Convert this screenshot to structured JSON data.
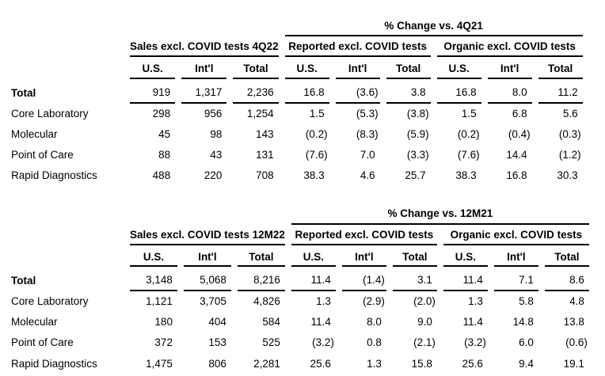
{
  "tables": [
    {
      "change_header": "% Change vs. 4Q21",
      "groups": [
        "Sales excl. COVID tests 4Q22",
        "Reported excl. COVID tests",
        "Organic excl. COVID tests"
      ],
      "subcolumns": [
        "U.S.",
        "Int'l",
        "Total",
        "U.S.",
        "Int'l",
        "Total",
        "U.S.",
        "Int'l",
        "Total"
      ],
      "rows": [
        {
          "label": "Total",
          "emphasis": true,
          "values": [
            "919",
            "1,317",
            "2,236",
            "16.8",
            "(3.6)",
            "3.8",
            "16.8",
            "8.0",
            "11.2"
          ]
        },
        {
          "label": "Core Laboratory",
          "emphasis": false,
          "values": [
            "298",
            "956",
            "1,254",
            "1.5",
            "(5.3)",
            "(3.8)",
            "1.5",
            "6.8",
            "5.6"
          ]
        },
        {
          "label": "Molecular",
          "emphasis": false,
          "values": [
            "45",
            "98",
            "143",
            "(0.2)",
            "(8.3)",
            "(5.9)",
            "(0.2)",
            "(0.4)",
            "(0.3)"
          ]
        },
        {
          "label": "Point of Care",
          "emphasis": false,
          "values": [
            "88",
            "43",
            "131",
            "(7.6)",
            "7.0",
            "(3.3)",
            "(7.6)",
            "14.4",
            "(1.2)"
          ]
        },
        {
          "label": "Rapid Diagnostics",
          "emphasis": false,
          "values": [
            "488",
            "220",
            "708",
            "38.3",
            "4.6",
            "25.7",
            "38.3",
            "16.8",
            "30.3"
          ]
        }
      ]
    },
    {
      "change_header": "% Change vs. 12M21",
      "groups": [
        "Sales excl. COVID tests 12M22",
        "Reported excl. COVID tests",
        "Organic excl. COVID tests"
      ],
      "subcolumns": [
        "U.S.",
        "Int'l",
        "Total",
        "U.S.",
        "Int'l",
        "Total",
        "U.S.",
        "Int'l",
        "Total"
      ],
      "rows": [
        {
          "label": "Total",
          "emphasis": true,
          "values": [
            "3,148",
            "5,068",
            "8,216",
            "11.4",
            "(1.4)",
            "3.1",
            "11.4",
            "7.1",
            "8.6"
          ]
        },
        {
          "label": "Core Laboratory",
          "emphasis": false,
          "values": [
            "1,121",
            "3,705",
            "4,826",
            "1.3",
            "(2.9)",
            "(2.0)",
            "1.3",
            "5.8",
            "4.8"
          ]
        },
        {
          "label": "Molecular",
          "emphasis": false,
          "values": [
            "180",
            "404",
            "584",
            "11.4",
            "8.0",
            "9.0",
            "11.4",
            "14.8",
            "13.8"
          ]
        },
        {
          "label": "Point of Care",
          "emphasis": false,
          "values": [
            "372",
            "153",
            "525",
            "(3.2)",
            "0.8",
            "(2.1)",
            "(3.2)",
            "6.0",
            "(0.6)"
          ]
        },
        {
          "label": "Rapid Diagnostics",
          "emphasis": false,
          "values": [
            "1,475",
            "806",
            "2,281",
            "25.6",
            "1.3",
            "15.8",
            "25.6",
            "9.4",
            "19.1"
          ]
        }
      ]
    }
  ]
}
